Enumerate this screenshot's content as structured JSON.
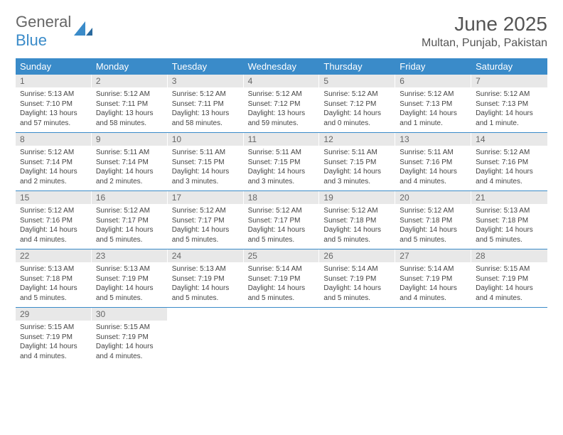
{
  "logo": {
    "text1": "General",
    "text2": "Blue"
  },
  "title": {
    "month": "June 2025",
    "location": "Multan, Punjab, Pakistan"
  },
  "colors": {
    "header_bg": "#3a8bc9",
    "header_text": "#ffffff",
    "daynum_bg": "#e8e8e8",
    "daynum_text": "#666666",
    "body_text": "#444444",
    "divider": "#3a8bc9"
  },
  "typography": {
    "title_fontsize": 28,
    "location_fontsize": 16,
    "header_fontsize": 13,
    "daynum_fontsize": 12,
    "content_fontsize": 10
  },
  "dayHeaders": [
    "Sunday",
    "Monday",
    "Tuesday",
    "Wednesday",
    "Thursday",
    "Friday",
    "Saturday"
  ],
  "days": [
    {
      "n": "1",
      "sr": "5:13 AM",
      "ss": "7:10 PM",
      "dl": "13 hours and 57 minutes."
    },
    {
      "n": "2",
      "sr": "5:12 AM",
      "ss": "7:11 PM",
      "dl": "13 hours and 58 minutes."
    },
    {
      "n": "3",
      "sr": "5:12 AM",
      "ss": "7:11 PM",
      "dl": "13 hours and 58 minutes."
    },
    {
      "n": "4",
      "sr": "5:12 AM",
      "ss": "7:12 PM",
      "dl": "13 hours and 59 minutes."
    },
    {
      "n": "5",
      "sr": "5:12 AM",
      "ss": "7:12 PM",
      "dl": "14 hours and 0 minutes."
    },
    {
      "n": "6",
      "sr": "5:12 AM",
      "ss": "7:13 PM",
      "dl": "14 hours and 1 minute."
    },
    {
      "n": "7",
      "sr": "5:12 AM",
      "ss": "7:13 PM",
      "dl": "14 hours and 1 minute."
    },
    {
      "n": "8",
      "sr": "5:12 AM",
      "ss": "7:14 PM",
      "dl": "14 hours and 2 minutes."
    },
    {
      "n": "9",
      "sr": "5:11 AM",
      "ss": "7:14 PM",
      "dl": "14 hours and 2 minutes."
    },
    {
      "n": "10",
      "sr": "5:11 AM",
      "ss": "7:15 PM",
      "dl": "14 hours and 3 minutes."
    },
    {
      "n": "11",
      "sr": "5:11 AM",
      "ss": "7:15 PM",
      "dl": "14 hours and 3 minutes."
    },
    {
      "n": "12",
      "sr": "5:11 AM",
      "ss": "7:15 PM",
      "dl": "14 hours and 3 minutes."
    },
    {
      "n": "13",
      "sr": "5:11 AM",
      "ss": "7:16 PM",
      "dl": "14 hours and 4 minutes."
    },
    {
      "n": "14",
      "sr": "5:12 AM",
      "ss": "7:16 PM",
      "dl": "14 hours and 4 minutes."
    },
    {
      "n": "15",
      "sr": "5:12 AM",
      "ss": "7:16 PM",
      "dl": "14 hours and 4 minutes."
    },
    {
      "n": "16",
      "sr": "5:12 AM",
      "ss": "7:17 PM",
      "dl": "14 hours and 5 minutes."
    },
    {
      "n": "17",
      "sr": "5:12 AM",
      "ss": "7:17 PM",
      "dl": "14 hours and 5 minutes."
    },
    {
      "n": "18",
      "sr": "5:12 AM",
      "ss": "7:17 PM",
      "dl": "14 hours and 5 minutes."
    },
    {
      "n": "19",
      "sr": "5:12 AM",
      "ss": "7:18 PM",
      "dl": "14 hours and 5 minutes."
    },
    {
      "n": "20",
      "sr": "5:12 AM",
      "ss": "7:18 PM",
      "dl": "14 hours and 5 minutes."
    },
    {
      "n": "21",
      "sr": "5:13 AM",
      "ss": "7:18 PM",
      "dl": "14 hours and 5 minutes."
    },
    {
      "n": "22",
      "sr": "5:13 AM",
      "ss": "7:18 PM",
      "dl": "14 hours and 5 minutes."
    },
    {
      "n": "23",
      "sr": "5:13 AM",
      "ss": "7:19 PM",
      "dl": "14 hours and 5 minutes."
    },
    {
      "n": "24",
      "sr": "5:13 AM",
      "ss": "7:19 PM",
      "dl": "14 hours and 5 minutes."
    },
    {
      "n": "25",
      "sr": "5:14 AM",
      "ss": "7:19 PM",
      "dl": "14 hours and 5 minutes."
    },
    {
      "n": "26",
      "sr": "5:14 AM",
      "ss": "7:19 PM",
      "dl": "14 hours and 5 minutes."
    },
    {
      "n": "27",
      "sr": "5:14 AM",
      "ss": "7:19 PM",
      "dl": "14 hours and 4 minutes."
    },
    {
      "n": "28",
      "sr": "5:15 AM",
      "ss": "7:19 PM",
      "dl": "14 hours and 4 minutes."
    },
    {
      "n": "29",
      "sr": "5:15 AM",
      "ss": "7:19 PM",
      "dl": "14 hours and 4 minutes."
    },
    {
      "n": "30",
      "sr": "5:15 AM",
      "ss": "7:19 PM",
      "dl": "14 hours and 4 minutes."
    }
  ],
  "labels": {
    "sunrise": "Sunrise: ",
    "sunset": "Sunset: ",
    "daylight": "Daylight: "
  },
  "layout": {
    "start_weekday": 0,
    "total_days": 30,
    "columns": 7,
    "rows": 5
  }
}
